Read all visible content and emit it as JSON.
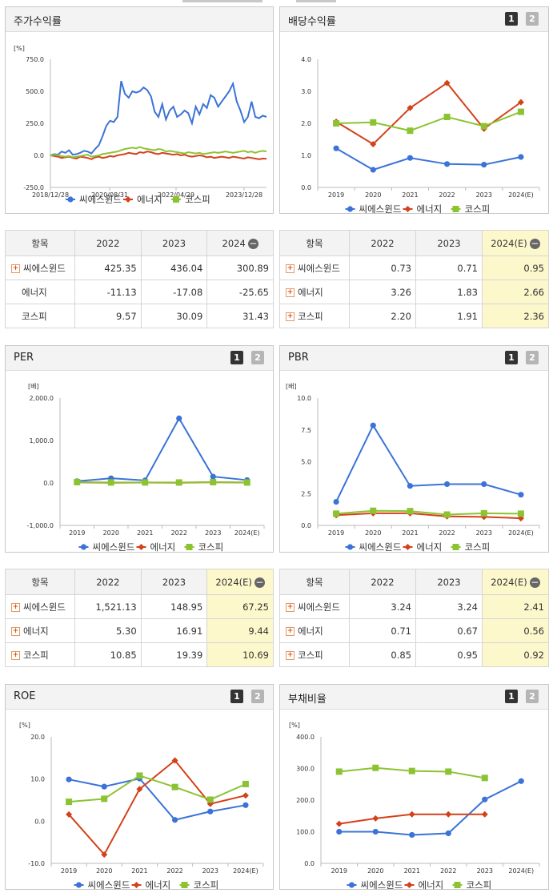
{
  "colors": {
    "series1": "#3b73d8",
    "series2": "#d4411a",
    "series3": "#8cc332"
  },
  "legend_names": [
    "씨에스윈드",
    "에너지",
    "코스피"
  ],
  "pager": {
    "p1": "1",
    "p2": "2"
  },
  "panels": {
    "stock": {
      "title": "주가수익률",
      "unit": "[%]",
      "chart_data": {
        "type": "line",
        "x_tick_labels": [
          "2018/12/28",
          "2020/08/31",
          "2022/04/29",
          "2023/12/28"
        ],
        "y_ticks": [
          "750.0",
          "500.0",
          "250.0",
          "0.0",
          "-250.0"
        ],
        "ylim": [
          -250,
          750
        ],
        "series": [
          {
            "name": "씨에스윈드",
            "values": [
              0,
              10,
              5,
              30,
              20,
              40,
              5,
              10,
              20,
              35,
              30,
              15,
              50,
              80,
              150,
              230,
              270,
              260,
              300,
              580,
              480,
              450,
              500,
              490,
              500,
              530,
              510,
              460,
              340,
              300,
              400,
              280,
              350,
              380,
              300,
              320,
              350,
              330,
              250,
              380,
              320,
              400,
              370,
              470,
              450,
              380,
              420,
              460,
              500,
              560,
              420,
              350,
              260,
              300,
              420,
              300,
              290,
              310,
              300
            ]
          },
          {
            "name": "에너지",
            "values": [
              0,
              -5,
              -10,
              -20,
              -15,
              -10,
              -20,
              -25,
              -10,
              -15,
              -20,
              -30,
              -15,
              -10,
              -20,
              -15,
              -5,
              -10,
              0,
              5,
              10,
              20,
              15,
              10,
              25,
              20,
              30,
              25,
              15,
              10,
              20,
              15,
              10,
              5,
              10,
              0,
              5,
              -5,
              -10,
              -5,
              0,
              -5,
              -15,
              -10,
              -20,
              -15,
              -10,
              -15,
              -20,
              -10,
              -15,
              -20,
              -25,
              -15,
              -20,
              -25,
              -30,
              -25,
              -26
            ]
          },
          {
            "name": "코스피",
            "values": [
              0,
              5,
              0,
              -5,
              -10,
              -5,
              -15,
              -10,
              -5,
              0,
              5,
              -10,
              -5,
              0,
              10,
              15,
              20,
              25,
              30,
              40,
              50,
              55,
              60,
              55,
              65,
              55,
              50,
              45,
              40,
              50,
              45,
              30,
              35,
              30,
              25,
              20,
              15,
              25,
              20,
              15,
              20,
              10,
              15,
              20,
              25,
              20,
              25,
              30,
              25,
              20,
              25,
              30,
              35,
              25,
              30,
              20,
              30,
              35,
              31
            ]
          }
        ]
      }
    },
    "stock_table": {
      "headers": [
        "항목",
        "2022",
        "2023",
        "2024"
      ],
      "rows": [
        {
          "name": "씨에스윈드",
          "plus": true,
          "v": [
            "425.35",
            "436.04",
            "300.89"
          ]
        },
        {
          "name": "에너지",
          "plus": false,
          "v": [
            "-11.13",
            "-17.08",
            "-25.65"
          ]
        },
        {
          "name": "코스피",
          "plus": false,
          "v": [
            "9.57",
            "30.09",
            "31.43"
          ]
        }
      ]
    },
    "div": {
      "title": "배당수익률",
      "unit": "",
      "chart_data": {
        "type": "line",
        "categories": [
          "2019",
          "2020",
          "2021",
          "2022",
          "2023",
          "2024(E)"
        ],
        "y_ticks": [
          "4.0",
          "3.0",
          "2.0",
          "1.0",
          "0.0"
        ],
        "ylim": [
          0,
          4
        ],
        "series": [
          {
            "name": "씨에스윈드",
            "values": [
              1.22,
              0.55,
              0.92,
              0.73,
              0.71,
              0.95
            ]
          },
          {
            "name": "에너지",
            "values": [
              2.05,
              1.35,
              2.48,
              3.26,
              1.83,
              2.66
            ]
          },
          {
            "name": "코스피",
            "values": [
              2.0,
              2.03,
              1.77,
              2.2,
              1.91,
              2.36
            ]
          }
        ]
      }
    },
    "div_table": {
      "headers": [
        "항목",
        "2022",
        "2023",
        "2024(E)"
      ],
      "rows": [
        {
          "name": "씨에스윈드",
          "plus": true,
          "v": [
            "0.73",
            "0.71",
            "0.95"
          ]
        },
        {
          "name": "에너지",
          "plus": true,
          "v": [
            "3.26",
            "1.83",
            "2.66"
          ]
        },
        {
          "name": "코스피",
          "plus": true,
          "v": [
            "2.20",
            "1.91",
            "2.36"
          ]
        }
      ]
    },
    "per": {
      "title": "PER",
      "unit": "[배]",
      "chart_data": {
        "type": "line",
        "categories": [
          "2019",
          "2020",
          "2021",
          "2022",
          "2023",
          "2024(E)"
        ],
        "y_ticks": [
          "2,000.0",
          "1,000.0",
          "0.0",
          "-1,000.0"
        ],
        "ylim": [
          -1000,
          2000
        ],
        "series": [
          {
            "name": "씨에스윈드",
            "values": [
              40,
              110,
              60,
              1521.13,
              148.95,
              67.25
            ]
          },
          {
            "name": "에너지",
            "values": [
              15,
              5,
              10,
              5.3,
              16.91,
              9.44
            ]
          },
          {
            "name": "코스피",
            "values": [
              20,
              12,
              12,
              10.85,
              19.39,
              10.69
            ]
          }
        ]
      }
    },
    "per_table": {
      "headers": [
        "항목",
        "2022",
        "2023",
        "2024(E)"
      ],
      "rows": [
        {
          "name": "씨에스윈드",
          "plus": true,
          "v": [
            "1,521.13",
            "148.95",
            "67.25"
          ]
        },
        {
          "name": "에너지",
          "plus": true,
          "v": [
            "5.30",
            "16.91",
            "9.44"
          ]
        },
        {
          "name": "코스피",
          "plus": true,
          "v": [
            "10.85",
            "19.39",
            "10.69"
          ]
        }
      ]
    },
    "pbr": {
      "title": "PBR",
      "unit": "[배]",
      "chart_data": {
        "type": "line",
        "categories": [
          "2019",
          "2020",
          "2021",
          "2022",
          "2023",
          "2024(E)"
        ],
        "y_ticks": [
          "10.0",
          "7.5",
          "5.0",
          "2.5",
          "0.0"
        ],
        "ylim": [
          0,
          10
        ],
        "series": [
          {
            "name": "씨에스윈드",
            "values": [
              1.85,
              7.85,
              3.1,
              3.24,
              3.24,
              2.41
            ]
          },
          {
            "name": "에너지",
            "values": [
              0.8,
              0.95,
              0.95,
              0.71,
              0.67,
              0.56
            ]
          },
          {
            "name": "코스피",
            "values": [
              0.92,
              1.15,
              1.12,
              0.85,
              0.95,
              0.92
            ]
          }
        ]
      }
    },
    "pbr_table": {
      "headers": [
        "항목",
        "2022",
        "2023",
        "2024(E)"
      ],
      "rows": [
        {
          "name": "씨에스윈드",
          "plus": true,
          "v": [
            "3.24",
            "3.24",
            "2.41"
          ]
        },
        {
          "name": "에너지",
          "plus": true,
          "v": [
            "0.71",
            "0.67",
            "0.56"
          ]
        },
        {
          "name": "코스피",
          "plus": true,
          "v": [
            "0.85",
            "0.95",
            "0.92"
          ]
        }
      ]
    },
    "roe": {
      "title": "ROE",
      "unit": "[%]",
      "chart_data": {
        "type": "line",
        "categories": [
          "2019",
          "2020",
          "2021",
          "2022",
          "2023",
          "2024(E)"
        ],
        "y_ticks": [
          "20.0",
          "10.0",
          "0.0",
          "-10.0"
        ],
        "ylim": [
          -10,
          20
        ],
        "series": [
          {
            "name": "씨에스윈드",
            "values": [
              9.9,
              8.2,
              10.1,
              0.3,
              2.3,
              3.8
            ]
          },
          {
            "name": "에너지",
            "values": [
              1.6,
              -7.9,
              7.6,
              14.4,
              4.1,
              6.1
            ]
          },
          {
            "name": "코스피",
            "values": [
              4.6,
              5.3,
              10.8,
              8.1,
              5.1,
              8.8
            ]
          }
        ]
      }
    },
    "debt": {
      "title": "부채비율",
      "unit": "[%]",
      "chart_data": {
        "type": "line",
        "categories": [
          "2019",
          "2020",
          "2021",
          "2022",
          "2023",
          "2024(E)"
        ],
        "y_ticks": [
          "400.0",
          "300.0",
          "200.0",
          "100.0",
          "0.0"
        ],
        "ylim": [
          0,
          400
        ],
        "series": [
          {
            "name": "씨에스윈드",
            "values": [
              100,
              100,
              90,
              95,
              202,
              260
            ]
          },
          {
            "name": "에너지",
            "values": [
              125,
              142,
              155,
              155,
              155,
              null
            ]
          },
          {
            "name": "코스피",
            "values": [
              290,
              302,
              292,
              290,
              270,
              null
            ]
          }
        ]
      }
    }
  }
}
